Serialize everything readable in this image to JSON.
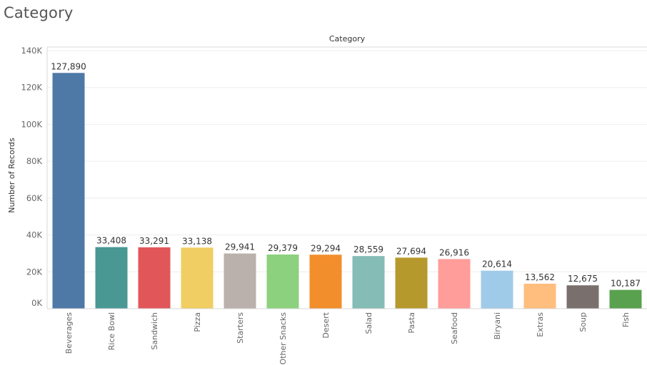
{
  "sheet": {
    "title": "Category"
  },
  "chart_data": {
    "type": "bar",
    "title": "Category",
    "xlabel": "",
    "ylabel": "Number of Records",
    "ylim": [
      0,
      140000
    ],
    "yticks": [
      0,
      20000,
      40000,
      60000,
      80000,
      100000,
      120000,
      140000
    ],
    "ytick_labels": [
      "0K",
      "20K",
      "40K",
      "60K",
      "80K",
      "100K",
      "120K",
      "140K"
    ],
    "grid": true,
    "categories": [
      "Beverages",
      "Rice Bowl",
      "Sandwich",
      "Pizza",
      "Starters",
      "Other Snacks",
      "Desert",
      "Salad",
      "Pasta",
      "Seafood",
      "Biryani",
      "Extras",
      "Soup",
      "Fish"
    ],
    "values": [
      127890,
      33408,
      33291,
      33138,
      29941,
      29379,
      29294,
      28559,
      27694,
      26916,
      20614,
      13562,
      12675,
      10187
    ],
    "value_labels": [
      "127,890",
      "33,408",
      "33,291",
      "33,138",
      "29,941",
      "29,379",
      "29,294",
      "28,559",
      "27,694",
      "26,916",
      "20,614",
      "13,562",
      "12,675",
      "10,187"
    ],
    "colors": [
      "#4e79a7",
      "#499894",
      "#e15759",
      "#f1ce63",
      "#bab0ac",
      "#8cd17d",
      "#f28e2b",
      "#86bcb6",
      "#b6992d",
      "#ff9d9a",
      "#a0cbe8",
      "#ffbe7d",
      "#79706e",
      "#59a14f"
    ]
  }
}
